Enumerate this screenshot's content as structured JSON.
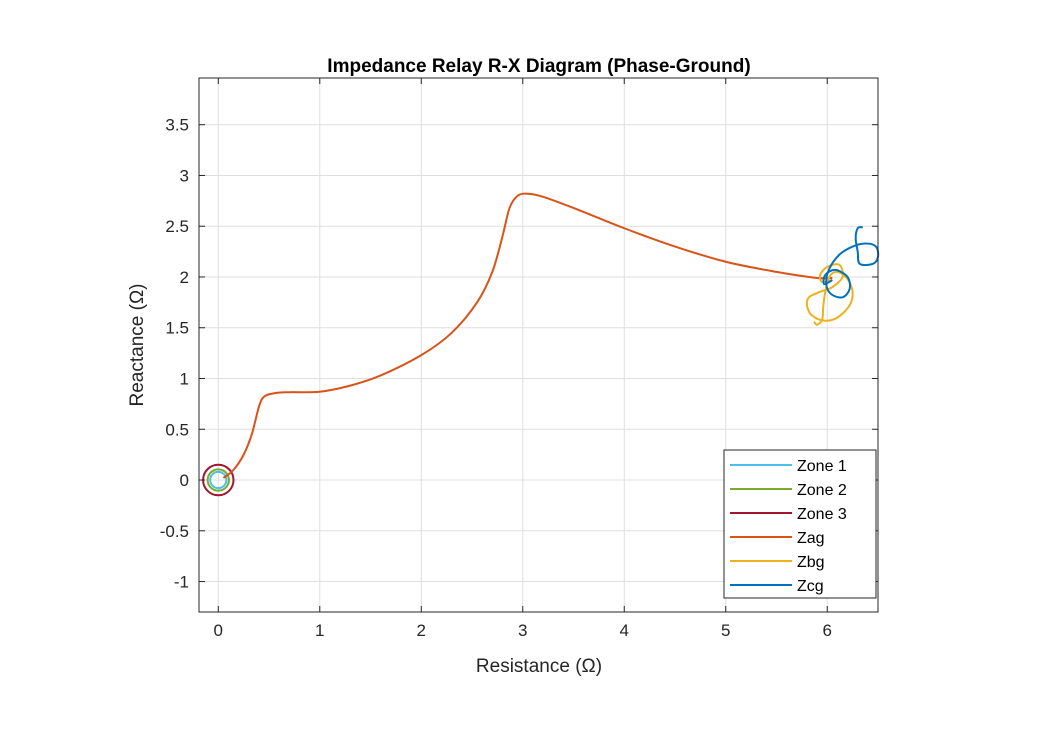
{
  "chart_data": {
    "type": "line",
    "title": "Impedance Relay R-X Diagram (Phase-Ground)",
    "xlabel": "Resistance (Ω)",
    "ylabel": "Reactance (Ω)",
    "xlim": [
      -0.19,
      6.5
    ],
    "ylim": [
      -1.3,
      3.96
    ],
    "xticks": [
      0,
      1,
      2,
      3,
      4,
      5,
      6
    ],
    "yticks": [
      -1,
      -0.5,
      0,
      0.5,
      1,
      1.5,
      2,
      2.5,
      3,
      3.5
    ],
    "grid": true,
    "legend_position": "bottom-right",
    "series": [
      {
        "name": "Zone 1",
        "color": "#4DBEEE",
        "circle": {
          "cx": 0,
          "cy": 0,
          "r": 0.08
        }
      },
      {
        "name": "Zone 2",
        "color": "#77AC30",
        "circle": {
          "cx": 0,
          "cy": 0,
          "r": 0.105
        }
      },
      {
        "name": "Zone 3",
        "color": "#A2142F",
        "circle": {
          "cx": 0,
          "cy": 0,
          "r": 0.15
        }
      },
      {
        "name": "Zag",
        "color": "#D95319",
        "points": [
          [
            0.05,
            0.02
          ],
          [
            0.15,
            0.1
          ],
          [
            0.25,
            0.25
          ],
          [
            0.33,
            0.45
          ],
          [
            0.4,
            0.72
          ],
          [
            0.45,
            0.82
          ],
          [
            0.55,
            0.855
          ],
          [
            0.7,
            0.865
          ],
          [
            1.0,
            0.87
          ],
          [
            1.3,
            0.93
          ],
          [
            1.6,
            1.03
          ],
          [
            2.0,
            1.23
          ],
          [
            2.3,
            1.45
          ],
          [
            2.55,
            1.75
          ],
          [
            2.7,
            2.05
          ],
          [
            2.8,
            2.4
          ],
          [
            2.87,
            2.68
          ],
          [
            2.95,
            2.8
          ],
          [
            3.05,
            2.82
          ],
          [
            3.2,
            2.79
          ],
          [
            3.5,
            2.68
          ],
          [
            4.0,
            2.48
          ],
          [
            4.5,
            2.3
          ],
          [
            5.0,
            2.15
          ],
          [
            5.5,
            2.05
          ],
          [
            5.9,
            1.99
          ],
          [
            6.05,
            1.99
          ]
        ]
      },
      {
        "name": "Zbg",
        "color": "#EDB120",
        "points": [
          [
            6.05,
            1.97
          ],
          [
            5.95,
            1.95
          ],
          [
            5.93,
            2.02
          ],
          [
            6.0,
            2.1
          ],
          [
            6.12,
            2.12
          ],
          [
            6.15,
            2.0
          ],
          [
            6.05,
            1.9
          ],
          [
            5.92,
            1.85
          ],
          [
            5.82,
            1.8
          ],
          [
            5.8,
            1.72
          ],
          [
            5.85,
            1.62
          ],
          [
            5.97,
            1.57
          ],
          [
            6.1,
            1.6
          ],
          [
            6.22,
            1.72
          ],
          [
            6.25,
            1.85
          ],
          [
            6.2,
            1.98
          ],
          [
            6.1,
            2.05
          ],
          [
            6.02,
            2.0
          ],
          [
            5.98,
            1.85
          ],
          [
            5.96,
            1.7
          ],
          [
            5.95,
            1.58
          ],
          [
            5.9,
            1.53
          ],
          [
            5.87,
            1.56
          ]
        ]
      },
      {
        "name": "Zcg",
        "color": "#0072BD",
        "points": [
          [
            6.05,
            1.97
          ],
          [
            5.97,
            1.93
          ],
          [
            5.98,
            2.02
          ],
          [
            6.08,
            2.07
          ],
          [
            6.2,
            2.0
          ],
          [
            6.22,
            1.88
          ],
          [
            6.15,
            1.8
          ],
          [
            6.04,
            1.83
          ],
          [
            5.99,
            1.93
          ],
          [
            6.02,
            2.08
          ],
          [
            6.12,
            2.22
          ],
          [
            6.25,
            2.3
          ],
          [
            6.38,
            2.33
          ],
          [
            6.48,
            2.3
          ],
          [
            6.5,
            2.2
          ],
          [
            6.45,
            2.13
          ],
          [
            6.32,
            2.13
          ],
          [
            6.3,
            2.25
          ],
          [
            6.28,
            2.38
          ],
          [
            6.3,
            2.48
          ],
          [
            6.35,
            2.49
          ]
        ]
      }
    ]
  }
}
